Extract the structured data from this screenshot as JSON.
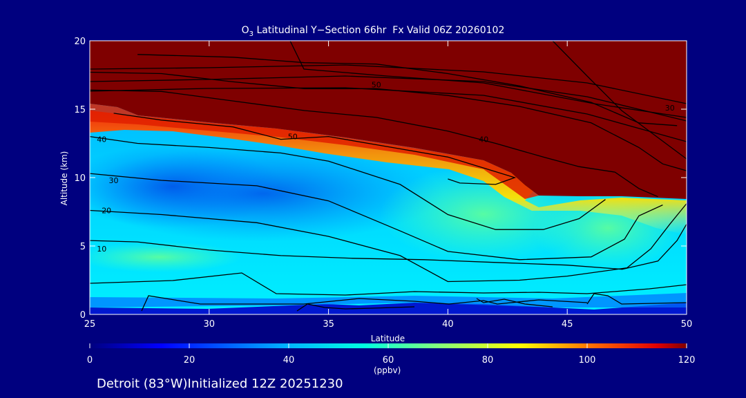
{
  "chart_data": {
    "type": "heatmap",
    "title_species": "O",
    "title_subscript": "3",
    "title_rest": " Latitudinal Y−Section 66hr  Fx Valid 06Z 20260102",
    "xlabel": "Latitude",
    "ylabel": "Altitude (km)",
    "xlim": [
      25,
      50
    ],
    "ylim": [
      0,
      20
    ],
    "x_ticks": [
      25,
      30,
      35,
      40,
      45,
      50
    ],
    "y_ticks": [
      0,
      5,
      10,
      15,
      20
    ],
    "colorbar": {
      "ticks": [
        0,
        20,
        40,
        60,
        80,
        100,
        120
      ],
      "unit": "(ppbv)",
      "range": [
        0,
        120
      ]
    },
    "contour_levels": [
      10,
      20,
      30,
      40,
      50
    ],
    "contours": [
      {
        "level": "10",
        "points": [
          [
            25,
            5.4
          ],
          [
            27,
            5.3
          ],
          [
            30,
            4.7
          ],
          [
            33,
            4.3
          ],
          [
            36,
            4.1
          ],
          [
            39,
            4.0
          ],
          [
            42,
            3.8
          ],
          [
            45,
            3.6
          ],
          [
            47.3,
            3.3
          ],
          [
            48.8,
            3.9
          ],
          [
            49.6,
            5.4
          ],
          [
            50,
            6.6
          ]
        ],
        "label_at": [
          25.5,
          4.8
        ]
      },
      {
        "level": "20",
        "points": [
          [
            25,
            7.6
          ],
          [
            28,
            7.3
          ],
          [
            32,
            6.7
          ],
          [
            35,
            5.7
          ],
          [
            38,
            4.3
          ],
          [
            40,
            2.4
          ],
          [
            43,
            2.5
          ],
          [
            45,
            2.8
          ],
          [
            47.5,
            3.4
          ],
          [
            48.5,
            4.8
          ],
          [
            49.3,
            6.6
          ],
          [
            50,
            8.1
          ]
        ],
        "label_at": [
          25.7,
          7.6
        ]
      },
      {
        "level": "30",
        "points": [
          [
            25,
            10.3
          ],
          [
            28,
            9.8
          ],
          [
            32,
            9.4
          ],
          [
            35,
            8.3
          ],
          [
            38,
            6.1
          ],
          [
            40,
            4.6
          ],
          [
            43,
            4.0
          ],
          [
            46,
            4.2
          ],
          [
            47.4,
            5.5
          ],
          [
            48,
            7.2
          ],
          [
            49,
            8.0
          ]
        ],
        "label_at": [
          26,
          9.8
        ]
      },
      {
        "level": "40",
        "points": [
          [
            25,
            13.0
          ],
          [
            27,
            12.5
          ],
          [
            30,
            12.2
          ],
          [
            33,
            11.8
          ],
          [
            35,
            11.2
          ],
          [
            38,
            9.5
          ],
          [
            40,
            7.3
          ],
          [
            42,
            6.2
          ],
          [
            44,
            6.2
          ],
          [
            45.5,
            7.0
          ],
          [
            46.6,
            8.4
          ]
        ],
        "label_at": [
          25.5,
          12.8
        ]
      },
      {
        "level": "50",
        "points": [
          [
            26,
            14.7
          ],
          [
            28,
            14.2
          ],
          [
            31,
            13.7
          ],
          [
            33,
            12.8
          ],
          [
            35,
            13.0
          ],
          [
            38,
            12.1
          ],
          [
            40,
            11.5
          ],
          [
            41.5,
            10.7
          ],
          [
            42.8,
            10.0
          ],
          [
            42.0,
            9.5
          ],
          [
            40.5,
            9.6
          ],
          [
            40.0,
            9.9
          ]
        ],
        "label_at": [
          33.5,
          13.0
        ]
      },
      {
        "level": "50",
        "points": [
          [
            25,
            17.7
          ],
          [
            28,
            17.6
          ],
          [
            31,
            17.0
          ],
          [
            34,
            16.5
          ],
          [
            37,
            16.5
          ],
          [
            40,
            16.0
          ],
          [
            43,
            15.2
          ],
          [
            46,
            14.0
          ],
          [
            48,
            12.2
          ],
          [
            49,
            11.0
          ],
          [
            50,
            10.5
          ]
        ],
        "label_at": [
          37,
          16.8
        ]
      },
      {
        "level": "40",
        "points": [
          [
            25,
            16.4
          ],
          [
            28,
            16.3
          ],
          [
            31,
            15.6
          ],
          [
            34,
            14.9
          ],
          [
            37,
            14.4
          ],
          [
            40,
            13.4
          ],
          [
            42,
            12.5
          ],
          [
            44,
            11.5
          ],
          [
            45.5,
            10.8
          ],
          [
            47,
            10.4
          ],
          [
            48,
            9.2
          ],
          [
            48.8,
            8.6
          ]
        ],
        "label_at": [
          41.5,
          12.8
        ]
      },
      {
        "level": "30",
        "points": [
          [
            27,
            19.0
          ],
          [
            31,
            18.8
          ],
          [
            34,
            18.4
          ],
          [
            37,
            18.3
          ],
          [
            40,
            17.6
          ],
          [
            43,
            16.7
          ],
          [
            46,
            15.5
          ],
          [
            48,
            14.0
          ],
          [
            49.6,
            13.8
          ]
        ],
        "label_at": [
          49.3,
          15.1
        ]
      }
    ],
    "annotations": [
      "Detroit (83°W)Initialized 12Z 20251230"
    ],
    "grid": false
  },
  "footer": "Detroit (83°W)Initialized 12Z 20251230"
}
